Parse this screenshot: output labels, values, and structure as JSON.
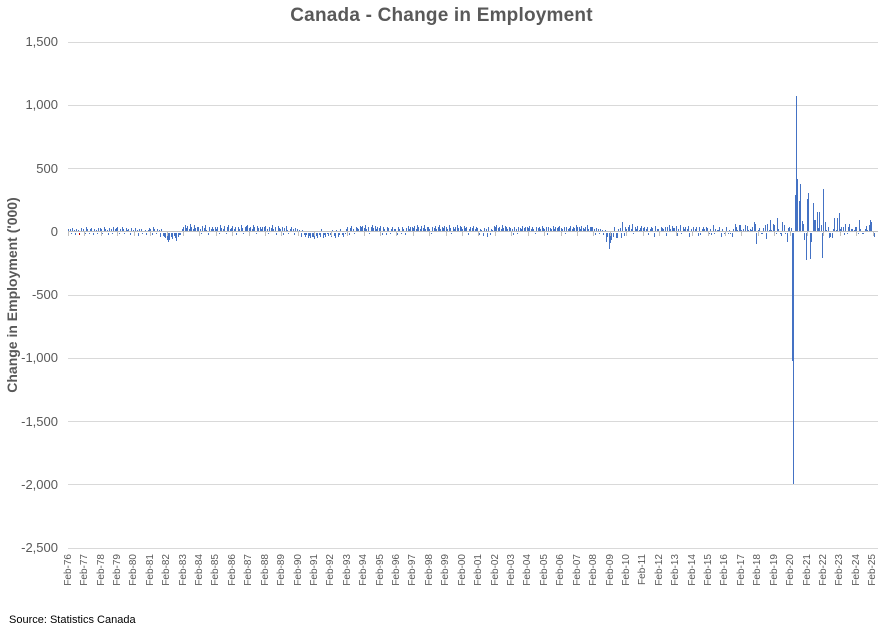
{
  "title": "Canada - Change in Employment",
  "source": "Source: Statistics Canada",
  "chart_data": {
    "type": "bar",
    "title": "Canada - Change in Employment",
    "xlabel": "",
    "ylabel": "Change in Employment ('000)",
    "ylim": [
      -2500,
      1500
    ],
    "ytick_step": 500,
    "yticks": [
      1500,
      1000,
      500,
      0,
      -500,
      -1000,
      -1500,
      -2000,
      -2500
    ],
    "ytick_labels": [
      "1,500",
      "1,000",
      "500",
      "0",
      "-500",
      "-1,000",
      "-1,500",
      "-2,000",
      "-2,500"
    ],
    "grid": true,
    "legend": "none",
    "bar_color": "#4472C4",
    "gridline_color": "#d9d9d9",
    "axis_color": "#bfbfbf",
    "x_frequency": "monthly",
    "x_start": "Feb-1976",
    "x_end": "May-2025",
    "x_tick_interval_months": 12,
    "x_tick_labels": [
      "Feb-76",
      "Feb-77",
      "Feb-78",
      "Feb-79",
      "Feb-80",
      "Feb-81",
      "Feb-82",
      "Feb-83",
      "Feb-84",
      "Feb-85",
      "Feb-86",
      "Feb-87",
      "Feb-88",
      "Feb-89",
      "Feb-90",
      "Feb-91",
      "Feb-92",
      "Feb-93",
      "Feb-94",
      "Feb-95",
      "Feb-96",
      "Feb-97",
      "Feb-98",
      "Feb-99",
      "Feb-00",
      "Feb-01",
      "Feb-02",
      "Feb-03",
      "Feb-04",
      "Feb-05",
      "Feb-06",
      "Feb-07",
      "Feb-08",
      "Feb-09",
      "Feb-10",
      "Feb-11",
      "Feb-12",
      "Feb-13",
      "Feb-14",
      "Feb-15",
      "Feb-16",
      "Feb-17",
      "Feb-18",
      "Feb-19",
      "Feb-20",
      "Feb-21",
      "Feb-22",
      "Feb-23",
      "Feb-24",
      "Feb-25"
    ],
    "highlight": {
      "index": 8,
      "color": "#C00000"
    },
    "notable_points": {
      "Mar-2020": -1010,
      "Apr-2020": -1990,
      "May-2020": 290,
      "Jun-2020": 1070,
      "Jan-2009": -125
    },
    "values": [
      18,
      25,
      -10,
      30,
      15,
      -14,
      22,
      10,
      -15,
      28,
      8,
      20,
      -12,
      35,
      18,
      -8,
      25,
      30,
      -15,
      22,
      12,
      -10,
      28,
      32,
      18,
      -12,
      40,
      25,
      15,
      -18,
      30,
      22,
      -10,
      35,
      20,
      28,
      35,
      -8,
      22,
      40,
      18,
      -12,
      30,
      15,
      25,
      -15,
      32,
      15,
      -20,
      28,
      10,
      -25,
      18,
      22,
      -12,
      8,
      15,
      -18,
      10,
      30,
      22,
      -15,
      35,
      18,
      -10,
      25,
      15,
      -30,
      20,
      -25,
      -35,
      -45,
      -60,
      -75,
      -55,
      -35,
      -50,
      -25,
      -40,
      -65,
      -30,
      -20,
      -15,
      25,
      40,
      55,
      30,
      45,
      20,
      60,
      35,
      25,
      50,
      30,
      40,
      35,
      20,
      -10,
      45,
      30,
      50,
      15,
      -15,
      40,
      25,
      35,
      20,
      40,
      25,
      35,
      -12,
      50,
      30,
      20,
      45,
      -10,
      35,
      55,
      25,
      30,
      45,
      20,
      35,
      -15,
      40,
      25,
      50,
      30,
      -10,
      35,
      45,
      50,
      30,
      40,
      25,
      55,
      35,
      -12,
      45,
      30,
      40,
      20,
      35,
      35,
      45,
      25,
      -10,
      40,
      30,
      50,
      20,
      35,
      -15,
      45,
      30,
      25,
      35,
      -20,
      30,
      45,
      15,
      -10,
      25,
      40,
      20,
      -15,
      30,
      20,
      -25,
      15,
      -30,
      10,
      -20,
      -35,
      -15,
      -40,
      -25,
      -45,
      -30,
      -35,
      -50,
      -25,
      -40,
      -15,
      -30,
      20,
      -45,
      -20,
      -35,
      -10,
      -25,
      -20,
      -35,
      15,
      -25,
      -40,
      10,
      -30,
      -15,
      25,
      -20,
      -35,
      -10,
      20,
      35,
      -15,
      30,
      45,
      25,
      -10,
      40,
      30,
      20,
      45,
      35,
      45,
      30,
      50,
      25,
      40,
      -12,
      35,
      55,
      30,
      45,
      25,
      40,
      30,
      45,
      -15,
      35,
      25,
      -20,
      40,
      30,
      -10,
      25,
      35,
      20,
      25,
      -18,
      35,
      20,
      -12,
      40,
      25,
      -15,
      30,
      45,
      20,
      35,
      40,
      30,
      45,
      25,
      55,
      35,
      20,
      45,
      30,
      50,
      25,
      40,
      35,
      25,
      -12,
      40,
      30,
      45,
      20,
      35,
      50,
      25,
      40,
      30,
      45,
      35,
      25,
      50,
      30,
      -10,
      40,
      25,
      35,
      55,
      30,
      45,
      40,
      25,
      45,
      30,
      35,
      -15,
      25,
      40,
      30,
      45,
      20,
      35,
      30,
      -20,
      25,
      15,
      -25,
      30,
      20,
      -30,
      35,
      -15,
      25,
      10,
      45,
      35,
      50,
      30,
      40,
      25,
      55,
      30,
      45,
      35,
      25,
      40,
      30,
      25,
      -15,
      35,
      20,
      -10,
      40,
      30,
      25,
      45,
      30,
      35,
      35,
      30,
      45,
      25,
      35,
      20,
      -12,
      40,
      30,
      35,
      25,
      45,
      30,
      25,
      35,
      -15,
      40,
      30,
      25,
      45,
      20,
      35,
      30,
      40,
      45,
      30,
      25,
      40,
      -10,
      35,
      25,
      30,
      45,
      20,
      35,
      30,
      50,
      35,
      40,
      25,
      45,
      30,
      20,
      35,
      50,
      25,
      40,
      35,
      35,
      25,
      -15,
      30,
      20,
      -10,
      25,
      15,
      -20,
      10,
      -70,
      -35,
      -125,
      -80,
      -60,
      -35,
      35,
      -40,
      -45,
      25,
      30,
      -45,
      75,
      -25,
      40,
      20,
      35,
      50,
      25,
      60,
      -10,
      35,
      20,
      45,
      15,
      30,
      45,
      30,
      40,
      25,
      35,
      -20,
      25,
      40,
      30,
      -35,
      45,
      20,
      25,
      -15,
      40,
      30,
      25,
      35,
      -25,
      35,
      50,
      20,
      45,
      30,
      30,
      45,
      -25,
      25,
      50,
      -10,
      35,
      25,
      40,
      20,
      45,
      -30,
      25,
      -10,
      35,
      20,
      40,
      -25,
      35,
      -15,
      25,
      40,
      20,
      35,
      30,
      -5,
      25,
      -20,
      50,
      -10,
      25,
      10,
      15,
      40,
      -30,
      20,
      -10,
      -5,
      35,
      -5,
      10,
      -5,
      -30,
      25,
      60,
      40,
      10,
      50,
      50,
      15,
      20,
      5,
      55,
      45,
      10,
      20,
      10,
      35,
      80,
      60,
      -85,
      15,
      30,
      -5,
      -10,
      30,
      55,
      -50,
      65,
      10,
      95,
      10,
      65,
      55,
      -5,
      105,
      25,
      -5,
      -25,
      80,
      55,
      -2,
      -70,
      30,
      35,
      30,
      -1010,
      -1990,
      290,
      1070,
      420,
      245,
      380,
      85,
      60,
      -55,
      -215,
      260,
      305,
      -205,
      -70,
      230,
      95,
      90,
      155,
      30,
      155,
      55,
      -200,
      335,
      75,
      15,
      40,
      -45,
      -30,
      -40,
      20,
      110,
      10,
      105,
      150,
      20,
      35,
      40,
      -15,
      60,
      -5,
      40,
      65,
      20,
      25,
      10,
      35,
      40,
      -2,
      90,
      25,
      -1,
      -3,
      20,
      45,
      15,
      50,
      90,
      75,
      1,
      -35,
      5,
      9
    ]
  }
}
